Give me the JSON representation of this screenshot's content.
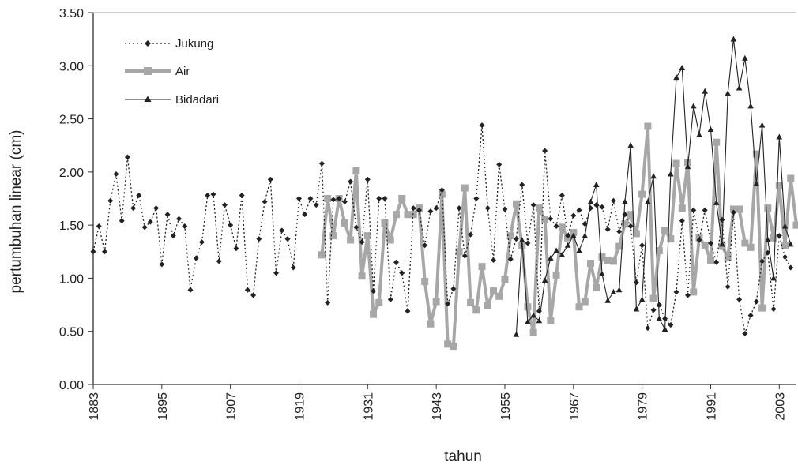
{
  "chart_data": {
    "type": "line",
    "title": "",
    "xlabel": "tahun",
    "ylabel": "pertumbuhan linear (cm)",
    "xlim": [
      1883,
      2006
    ],
    "ylim": [
      0,
      3.5
    ],
    "x_ticks": [
      "1883",
      "1895",
      "1907",
      "1919",
      "1931",
      "1943",
      "1955",
      "1967",
      "1979",
      "1991",
      "2003"
    ],
    "y_ticks": [
      "0.00",
      "0.50",
      "1.00",
      "1.50",
      "2.00",
      "2.50",
      "3.00",
      "3.50"
    ],
    "grid": false,
    "legend_position": "top-left",
    "series": [
      {
        "name": "Jukung",
        "style": "dotted",
        "marker": "diamond",
        "color": "#222222",
        "x": [
          1883,
          1884,
          1885,
          1886,
          1887,
          1888,
          1889,
          1890,
          1891,
          1892,
          1893,
          1894,
          1895,
          1896,
          1897,
          1898,
          1899,
          1900,
          1901,
          1902,
          1903,
          1904,
          1905,
          1906,
          1907,
          1908,
          1909,
          1910,
          1911,
          1912,
          1913,
          1914,
          1915,
          1916,
          1917,
          1918,
          1919,
          1920,
          1921,
          1922,
          1923,
          1924,
          1925,
          1926,
          1927,
          1928,
          1929,
          1930,
          1931,
          1932,
          1933,
          1934,
          1935,
          1936,
          1937,
          1938,
          1939,
          1940,
          1941,
          1942,
          1943,
          1944,
          1945,
          1946,
          1947,
          1948,
          1949,
          1950,
          1951,
          1952,
          1953,
          1954,
          1955,
          1956,
          1957,
          1958,
          1959,
          1960,
          1961,
          1962,
          1963,
          1964,
          1965,
          1966,
          1967,
          1968,
          1969,
          1970,
          1971,
          1972,
          1973,
          1974,
          1975,
          1976,
          1977,
          1978,
          1979,
          1980,
          1981,
          1982,
          1983,
          1984,
          1985,
          1986,
          1987,
          1988,
          1989,
          1990,
          1991,
          1992,
          1993,
          1994,
          1995,
          1996,
          1997,
          1998,
          1999,
          2000,
          2001,
          2002,
          2003,
          2004,
          2005
        ],
        "y": [
          1.25,
          1.49,
          1.25,
          1.73,
          1.98,
          1.54,
          2.14,
          1.66,
          1.78,
          1.48,
          1.53,
          1.66,
          1.13,
          1.6,
          1.4,
          1.56,
          1.49,
          0.89,
          1.19,
          1.34,
          1.78,
          1.79,
          1.16,
          1.69,
          1.5,
          1.28,
          1.78,
          0.89,
          0.84,
          1.37,
          1.72,
          1.93,
          1.05,
          1.45,
          1.37,
          1.1,
          1.75,
          1.6,
          1.75,
          1.69,
          2.08,
          0.77,
          1.74,
          1.75,
          1.72,
          1.91,
          1.48,
          1.34,
          1.93,
          0.88,
          1.75,
          1.75,
          0.8,
          1.15,
          1.05,
          0.69,
          1.66,
          1.64,
          1.31,
          1.63,
          1.66,
          1.83,
          0.76,
          0.9,
          1.66,
          1.21,
          1.41,
          1.75,
          2.44,
          1.66,
          1.17,
          2.07,
          1.65,
          1.18,
          1.37,
          1.88,
          1.33,
          1.69,
          0.69,
          2.2,
          1.56,
          1.49,
          1.78,
          1.4,
          1.59,
          1.64,
          1.51,
          1.66,
          1.69,
          1.67,
          1.46,
          1.73,
          1.44,
          1.6,
          1.49,
          0.96,
          1.31,
          0.53,
          0.7,
          0.75,
          0.62,
          0.56,
          0.87,
          1.54,
          0.84,
          1.64,
          1.36,
          1.64,
          1.33,
          1.15,
          1.55,
          0.92,
          1.62,
          0.8,
          0.48,
          0.65,
          0.78,
          1.16,
          1.24,
          0.71,
          1.4,
          1.2,
          1.1
        ]
      },
      {
        "name": "Air",
        "style": "solid-thick",
        "marker": "square",
        "color": "#a7a7a7",
        "x": [
          1923,
          1924,
          1925,
          1926,
          1927,
          1928,
          1929,
          1930,
          1931,
          1932,
          1933,
          1934,
          1935,
          1936,
          1937,
          1938,
          1939,
          1940,
          1941,
          1942,
          1943,
          1944,
          1945,
          1946,
          1947,
          1948,
          1949,
          1950,
          1951,
          1952,
          1953,
          1954,
          1955,
          1956,
          1957,
          1958,
          1959,
          1960,
          1961,
          1962,
          1963,
          1964,
          1965,
          1966,
          1967,
          1968,
          1969,
          1970,
          1971,
          1972,
          1973,
          1974,
          1975,
          1976,
          1977,
          1978,
          1979,
          1980,
          1981,
          1982,
          1983,
          1984,
          1985,
          1986,
          1987,
          1988,
          1989,
          1990,
          1991,
          1992,
          1993,
          1994,
          1995,
          1996,
          1997,
          1998,
          1999,
          2000,
          2001,
          2002,
          2003,
          2004,
          2005,
          2006
        ],
        "y": [
          1.22,
          1.75,
          1.4,
          1.75,
          1.52,
          1.36,
          2.01,
          1.02,
          1.4,
          0.66,
          0.77,
          1.52,
          1.36,
          1.6,
          1.75,
          1.6,
          1.6,
          1.66,
          0.97,
          0.57,
          0.78,
          1.79,
          0.38,
          0.36,
          1.25,
          1.85,
          0.77,
          0.7,
          1.11,
          0.74,
          0.88,
          0.83,
          0.99,
          1.4,
          1.7,
          1.31,
          0.73,
          0.49,
          1.66,
          1.55,
          0.6,
          1.03,
          1.48,
          1.38,
          1.43,
          0.73,
          0.78,
          1.14,
          0.91,
          1.2,
          1.17,
          1.16,
          1.3,
          1.51,
          1.6,
          1.42,
          1.79,
          2.43,
          0.81,
          1.26,
          1.45,
          1.37,
          2.08,
          1.66,
          2.09,
          0.87,
          1.38,
          1.31,
          1.17,
          2.28,
          1.3,
          1.2,
          1.65,
          1.65,
          1.33,
          1.29,
          2.17,
          0.72,
          1.66,
          1.38,
          1.87,
          1.31,
          1.94,
          1.5
        ]
      },
      {
        "name": "Bidadari",
        "style": "solid-thin",
        "marker": "triangle",
        "color": "#222222",
        "x": [
          1957,
          1958,
          1959,
          1960,
          1961,
          1962,
          1963,
          1964,
          1965,
          1966,
          1967,
          1968,
          1969,
          1970,
          1971,
          1972,
          1973,
          1974,
          1975,
          1976,
          1977,
          1978,
          1979,
          1980,
          1981,
          1982,
          1983,
          1984,
          1985,
          1986,
          1987,
          1988,
          1989,
          1990,
          1991,
          1992,
          1993,
          1994,
          1995,
          1996,
          1997,
          1998,
          1999,
          2000,
          2001,
          2002,
          2003,
          2004,
          2005
        ],
        "y": [
          0.47,
          1.36,
          0.59,
          0.65,
          0.6,
          0.98,
          1.19,
          1.26,
          1.22,
          1.31,
          1.4,
          1.26,
          1.4,
          1.72,
          1.88,
          1.04,
          0.79,
          0.87,
          0.89,
          1.72,
          2.25,
          0.71,
          0.8,
          1.72,
          1.96,
          0.62,
          0.52,
          1.98,
          2.89,
          2.98,
          2.05,
          2.62,
          2.35,
          2.76,
          2.4,
          1.71,
          1.32,
          2.74,
          3.25,
          2.79,
          3.07,
          2.62,
          1.89,
          2.44,
          1.36,
          1.0,
          2.33,
          1.49,
          1.32
        ]
      }
    ]
  }
}
